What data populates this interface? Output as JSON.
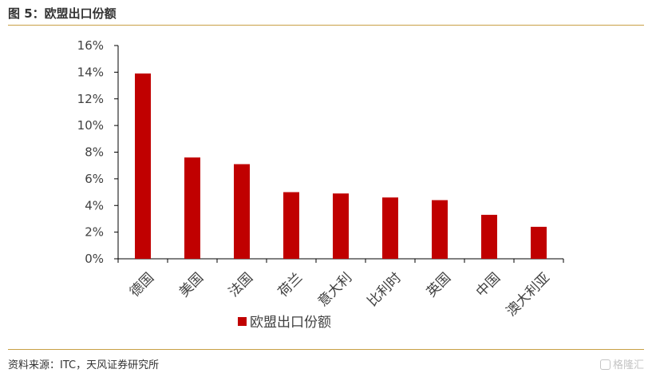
{
  "figure": {
    "title": "图 5：欧盟出口份额",
    "source": "资料来源：ITC，天风证券研究所",
    "watermark": "格隆汇"
  },
  "colors": {
    "bar": "#c00000",
    "rule": "#c8a045",
    "axis": "#000000"
  },
  "chart_data": {
    "type": "bar",
    "categories": [
      "德国",
      "美国",
      "法国",
      "荷兰",
      "意大利",
      "比利时",
      "英国",
      "中国",
      "澳大利亚"
    ],
    "series": [
      {
        "name": "欧盟出口份额",
        "values": [
          13.9,
          7.6,
          7.1,
          5.0,
          4.9,
          4.6,
          4.4,
          3.3,
          2.4
        ]
      }
    ],
    "y_tick_labels": [
      "0%",
      "2%",
      "4%",
      "6%",
      "8%",
      "10%",
      "12%",
      "14%",
      "16%"
    ],
    "ylim": [
      0,
      16
    ],
    "y_unit": "%",
    "grid": false,
    "legend_position": "bottom",
    "x_label_rotation": "-45deg"
  }
}
